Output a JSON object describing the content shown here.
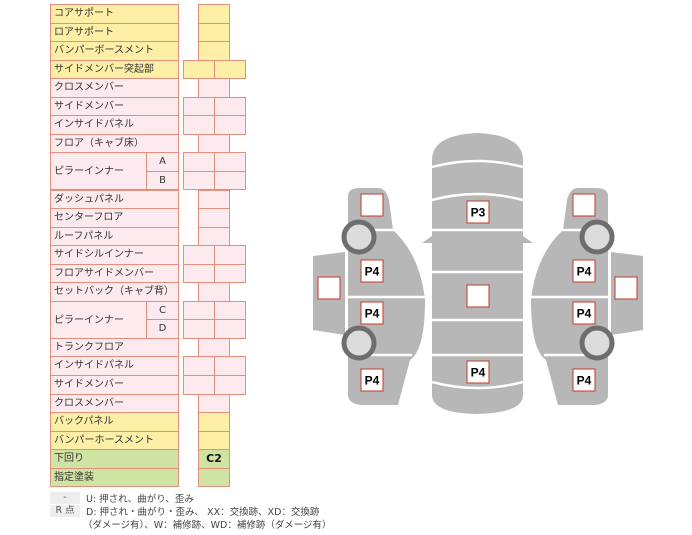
{
  "rows": [
    {
      "label": "コアサポート",
      "color": "y",
      "cells": 1,
      "values": [
        ""
      ]
    },
    {
      "label": "ロアサポート",
      "color": "y",
      "cells": 1,
      "values": [
        ""
      ]
    },
    {
      "label": "バンパーボースメント",
      "color": "y",
      "cells": 1,
      "values": [
        ""
      ]
    },
    {
      "label": "サイドメンバー突起部",
      "color": "y",
      "cells": 2,
      "values": [
        "",
        ""
      ]
    },
    {
      "label": "クロスメンバー",
      "color": "p",
      "cells": 1,
      "values": [
        ""
      ]
    },
    {
      "label": "サイドメンバー",
      "color": "p",
      "cells": 2,
      "values": [
        "",
        ""
      ]
    },
    {
      "label": "インサイドパネル",
      "color": "p",
      "cells": 2,
      "values": [
        "",
        ""
      ]
    },
    {
      "label": "フロア（キャブ床）",
      "color": "p",
      "cells": 1,
      "values": [
        ""
      ]
    },
    {
      "label": "ピラーインナー",
      "sub": "A",
      "color": "p",
      "cells": 2,
      "values": [
        "",
        ""
      ]
    },
    {
      "label": "",
      "sub": "B",
      "color": "p",
      "cells": 2,
      "values": [
        "",
        ""
      ]
    },
    {
      "label": "ダッシュパネル",
      "color": "p",
      "cells": 1,
      "values": [
        ""
      ]
    },
    {
      "label": "センターフロア",
      "color": "p",
      "cells": 1,
      "values": [
        ""
      ]
    },
    {
      "label": "ルーフパネル",
      "color": "p",
      "cells": 1,
      "values": [
        ""
      ]
    },
    {
      "label": "サイドシルインナー",
      "color": "p",
      "cells": 2,
      "values": [
        "",
        ""
      ]
    },
    {
      "label": "フロアサイドメンバー",
      "color": "p",
      "cells": 2,
      "values": [
        "",
        ""
      ]
    },
    {
      "label": "セットバック（キャブ背）",
      "color": "p",
      "cells": 1,
      "values": [
        ""
      ]
    },
    {
      "label": "ピラーインナー",
      "sub": "C",
      "color": "p",
      "cells": 2,
      "values": [
        "",
        ""
      ]
    },
    {
      "label": "",
      "sub": "D",
      "color": "p",
      "cells": 2,
      "values": [
        "",
        ""
      ]
    },
    {
      "label": "トランクフロア",
      "color": "p",
      "cells": 1,
      "values": [
        ""
      ]
    },
    {
      "label": "インサイドパネル",
      "color": "p",
      "cells": 2,
      "values": [
        "",
        ""
      ]
    },
    {
      "label": "サイドメンバー",
      "color": "p",
      "cells": 2,
      "values": [
        "",
        ""
      ]
    },
    {
      "label": "クロスメンバー",
      "color": "p",
      "cells": 1,
      "values": [
        ""
      ]
    },
    {
      "label": "バックパネル",
      "color": "y",
      "cells": 1,
      "values": [
        ""
      ]
    },
    {
      "label": "バンパーホースメント",
      "color": "y",
      "cells": 1,
      "values": [
        ""
      ]
    },
    {
      "label": "下回り",
      "color": "g",
      "cells": 1,
      "values": [
        "C2"
      ]
    },
    {
      "label": "指定塗装",
      "color": "g",
      "cells": 1,
      "values": [
        ""
      ]
    }
  ],
  "legend": [
    {
      "key": "-",
      "text": "U: 押され、曲がり、歪み"
    },
    {
      "key": "R 点",
      "text": "D: 押され・曲がり・歪み、 XX：交換跡、XD：交換跡"
    },
    {
      "key": "",
      "text": "（ダメージ有）、W：補修跡、WD：補修跡（ダメージ有）"
    }
  ],
  "diagram": {
    "center": {
      "top": "",
      "roof": "P3",
      "middle": "",
      "rear": "P4"
    },
    "left": {
      "front": "",
      "front_door": "P4",
      "rear_door": "P4",
      "rear": "P4",
      "door_panel": ""
    },
    "right": {
      "front": "",
      "front_door": "P4",
      "rear_door": "P4",
      "rear": "P4",
      "door_panel": ""
    },
    "colors": {
      "body": "#b7b7b7",
      "tire": "#6e6e6e",
      "wheel": "#dcdcdc",
      "box_border": "#c0392b"
    }
  }
}
